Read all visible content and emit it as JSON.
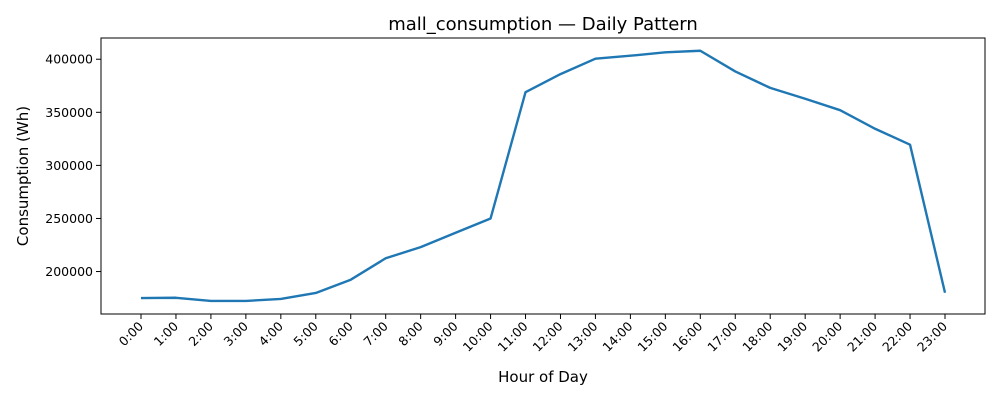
{
  "chart_data": {
    "type": "line",
    "title": "mall_consumption — Daily Pattern",
    "xlabel": "Hour of Day",
    "ylabel": "Consumption (Wh)",
    "categories": [
      "0:00",
      "1:00",
      "2:00",
      "3:00",
      "4:00",
      "5:00",
      "6:00",
      "7:00",
      "8:00",
      "9:00",
      "10:00",
      "11:00",
      "12:00",
      "13:00",
      "14:00",
      "15:00",
      "16:00",
      "17:00",
      "18:00",
      "19:00",
      "20:00",
      "21:00",
      "22:00",
      "23:00"
    ],
    "series": [
      {
        "color": "#1f77b4",
        "values": [
          175000,
          175300,
          172300,
          172300,
          174200,
          179800,
          192300,
          212500,
          223000,
          236500,
          250000,
          369000,
          386000,
          400500,
          403300,
          406500,
          408000,
          388500,
          373000,
          362800,
          352000,
          334500,
          319500,
          180000
        ]
      }
    ],
    "ylim": [
      160000,
      420000
    ],
    "yticks": [
      200000,
      250000,
      300000,
      350000,
      400000
    ],
    "grid": false,
    "legend": "none"
  }
}
